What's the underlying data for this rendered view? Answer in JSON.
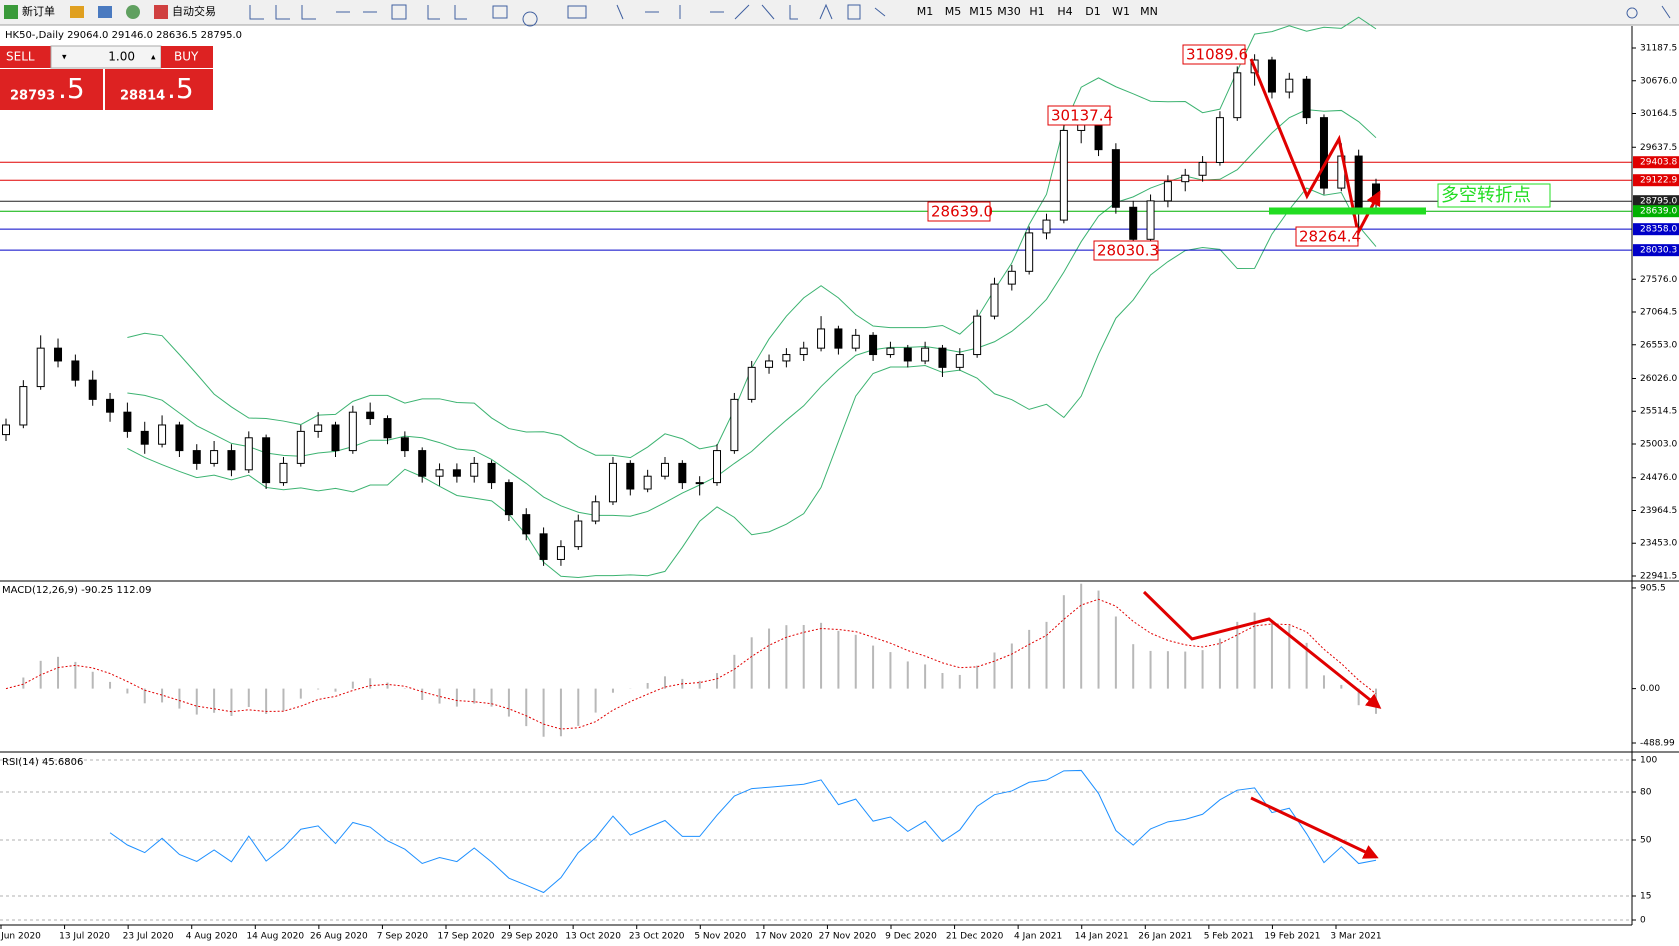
{
  "toolbar": {
    "new_order": "新订单",
    "auto_trading": "自动交易",
    "timeframes": [
      "M1",
      "M5",
      "M15",
      "M30",
      "H1",
      "H4",
      "D1",
      "W1",
      "MN"
    ]
  },
  "header": "HK50-,Daily  29064.0 29146.0 28636.5 28795.0",
  "trade_panel": {
    "sell": "SELL",
    "buy": "BUY",
    "lots": "1.00",
    "sell_main": "28793",
    "sell_frac": ".5",
    "buy_main": "28814",
    "buy_frac": ".5"
  },
  "chart_data": {
    "type": "candlestick",
    "ylim": [
      22879,
      31500
    ],
    "yticks": [
      31187.5,
      {
        "value": 30676.0,
        "label": "30676.0"
      },
      30164.5,
      29637.5,
      {
        "value": 27576.0,
        "label": "27576.0"
      },
      27064.5,
      {
        "value": 26553.0,
        "label": "26553.0"
      },
      {
        "value": 26026.0,
        "label": "26026.0"
      },
      25514.5,
      {
        "value": 25003.0,
        "label": "25003.0"
      },
      {
        "value": 24476.0,
        "label": "24476.0"
      },
      23964.5,
      {
        "value": 23453.0,
        "label": "23453.0"
      },
      22941.5
    ],
    "levels": [
      {
        "value": 29403.8,
        "label": "29403.8",
        "color": "#e00000"
      },
      {
        "value": 29122.9,
        "label": "29122.9",
        "color": "#e00000"
      },
      {
        "value": 28795.0,
        "label": "28795.0",
        "color": "#202020"
      },
      {
        "value": 28639.0,
        "label": "28639.0",
        "color": "#00b000"
      },
      {
        "value": 28358.0,
        "label": "28358.0",
        "color": "#0000c8"
      },
      {
        "value": 28030.3,
        "label": "28030.3",
        "color": "#0000c8"
      }
    ],
    "annotations": [
      "31089.6",
      "30137.4",
      "28639.0",
      "28030.3",
      "28264.4",
      "多空转折点"
    ],
    "x_labels": [
      "Jun 2020",
      "13 Jul 2020",
      "23 Jul 2020",
      "4 Aug 2020",
      "14 Aug 2020",
      "26 Aug 2020",
      "7 Sep 2020",
      "17 Sep 2020",
      "29 Sep 2020",
      "13 Oct 2020",
      "23 Oct 2020",
      "5 Nov 2020",
      "17 Nov 2020",
      "27 Nov 2020",
      "9 Dec 2020",
      "21 Dec 2020",
      "4 Jan 2021",
      "14 Jan 2021",
      "26 Jan 2021",
      "5 Feb 2021",
      "19 Feb 2021",
      "3 Mar 2021"
    ],
    "candles": [
      [
        25150,
        25400,
        25050,
        25300
      ],
      [
        25300,
        26000,
        25250,
        25900
      ],
      [
        25900,
        26700,
        25850,
        26500
      ],
      [
        26500,
        26650,
        26200,
        26300
      ],
      [
        26300,
        26400,
        25900,
        26000
      ],
      [
        26000,
        26150,
        25600,
        25700
      ],
      [
        25700,
        25800,
        25350,
        25500
      ],
      [
        25500,
        25650,
        25100,
        25200
      ],
      [
        25200,
        25350,
        24850,
        25000
      ],
      [
        25000,
        25450,
        24950,
        25300
      ],
      [
        25300,
        25350,
        24800,
        24900
      ],
      [
        24900,
        25000,
        24600,
        24700
      ],
      [
        24700,
        25050,
        24650,
        24900
      ],
      [
        24900,
        25000,
        24500,
        24600
      ],
      [
        24600,
        25200,
        24550,
        25100
      ],
      [
        25100,
        25150,
        24300,
        24400
      ],
      [
        24400,
        24800,
        24350,
        24700
      ],
      [
        24700,
        25300,
        24650,
        25200
      ],
      [
        25200,
        25500,
        25100,
        25300
      ],
      [
        25300,
        25350,
        24800,
        24900
      ],
      [
        24900,
        25600,
        24850,
        25500
      ],
      [
        25500,
        25650,
        25300,
        25400
      ],
      [
        25400,
        25450,
        25000,
        25100
      ],
      [
        25100,
        25200,
        24800,
        24900
      ],
      [
        24900,
        24950,
        24400,
        24500
      ],
      [
        24500,
        24700,
        24350,
        24600
      ],
      [
        24600,
        24700,
        24400,
        24500
      ],
      [
        24500,
        24800,
        24400,
        24700
      ],
      [
        24700,
        24750,
        24300,
        24400
      ],
      [
        24400,
        24450,
        23800,
        23900
      ],
      [
        23900,
        24000,
        23500,
        23600
      ],
      [
        23600,
        23700,
        23100,
        23200
      ],
      [
        23200,
        23500,
        23100,
        23400
      ],
      [
        23400,
        23900,
        23350,
        23800
      ],
      [
        23800,
        24200,
        23750,
        24100
      ],
      [
        24100,
        24800,
        24050,
        24700
      ],
      [
        24700,
        24750,
        24200,
        24300
      ],
      [
        24300,
        24600,
        24250,
        24500
      ],
      [
        24500,
        24800,
        24450,
        24700
      ],
      [
        24700,
        24750,
        24300,
        24400
      ],
      [
        24400,
        24500,
        24200,
        24400
      ],
      [
        24400,
        25000,
        24350,
        24900
      ],
      [
        24900,
        25800,
        24850,
        25700
      ],
      [
        25700,
        26300,
        25650,
        26200
      ],
      [
        26200,
        26400,
        26100,
        26300
      ],
      [
        26300,
        26500,
        26200,
        26400
      ],
      [
        26400,
        26600,
        26300,
        26500
      ],
      [
        26500,
        27000,
        26450,
        26800
      ],
      [
        26800,
        26850,
        26400,
        26500
      ],
      [
        26500,
        26800,
        26450,
        26700
      ],
      [
        26700,
        26750,
        26300,
        26400
      ],
      [
        26400,
        26600,
        26350,
        26500
      ],
      [
        26500,
        26550,
        26200,
        26300
      ],
      [
        26300,
        26600,
        26250,
        26500
      ],
      [
        26500,
        26550,
        26050,
        26200
      ],
      [
        26200,
        26500,
        26150,
        26400
      ],
      [
        26400,
        27100,
        26350,
        27000
      ],
      [
        27000,
        27600,
        26950,
        27500
      ],
      [
        27500,
        27800,
        27400,
        27700
      ],
      [
        27700,
        28400,
        27650,
        28300
      ],
      [
        28300,
        28600,
        28200,
        28500
      ],
      [
        28500,
        30000,
        28450,
        29900
      ],
      [
        29900,
        30150,
        29700,
        30000
      ],
      [
        30000,
        30050,
        29500,
        29600
      ],
      [
        29600,
        29700,
        28600,
        28700
      ],
      [
        28700,
        28800,
        28030,
        28200
      ],
      [
        28200,
        28900,
        28150,
        28800
      ],
      [
        28800,
        29200,
        28700,
        29100
      ],
      [
        29100,
        29300,
        28950,
        29200
      ],
      [
        29200,
        29500,
        29100,
        29400
      ],
      [
        29400,
        30200,
        29350,
        30100
      ],
      [
        30100,
        30900,
        30050,
        30800
      ],
      [
        30800,
        31090,
        30600,
        31000
      ],
      [
        31000,
        31050,
        30400,
        30500
      ],
      [
        30500,
        30800,
        30400,
        30700
      ],
      [
        30700,
        30750,
        30000,
        30100
      ],
      [
        30100,
        30150,
        28900,
        29000
      ],
      [
        29000,
        29700,
        28950,
        29500
      ],
      [
        29500,
        29600,
        28264,
        28700
      ],
      [
        29064,
        29146,
        28636.5,
        28795
      ]
    ],
    "macd": {
      "label": "MACD(12,26,9) -90.25 112.09",
      "ylim": [
        -552,
        950
      ],
      "yticks": [
        905.5,
        {
          "value": 0,
          "label": "0.00"
        },
        -488.99
      ]
    },
    "rsi": {
      "label": "RSI(14) 45.6806",
      "ylim": [
        -3.125,
        104.375
      ],
      "yticks": [
        100,
        80,
        50,
        15,
        0
      ]
    }
  }
}
